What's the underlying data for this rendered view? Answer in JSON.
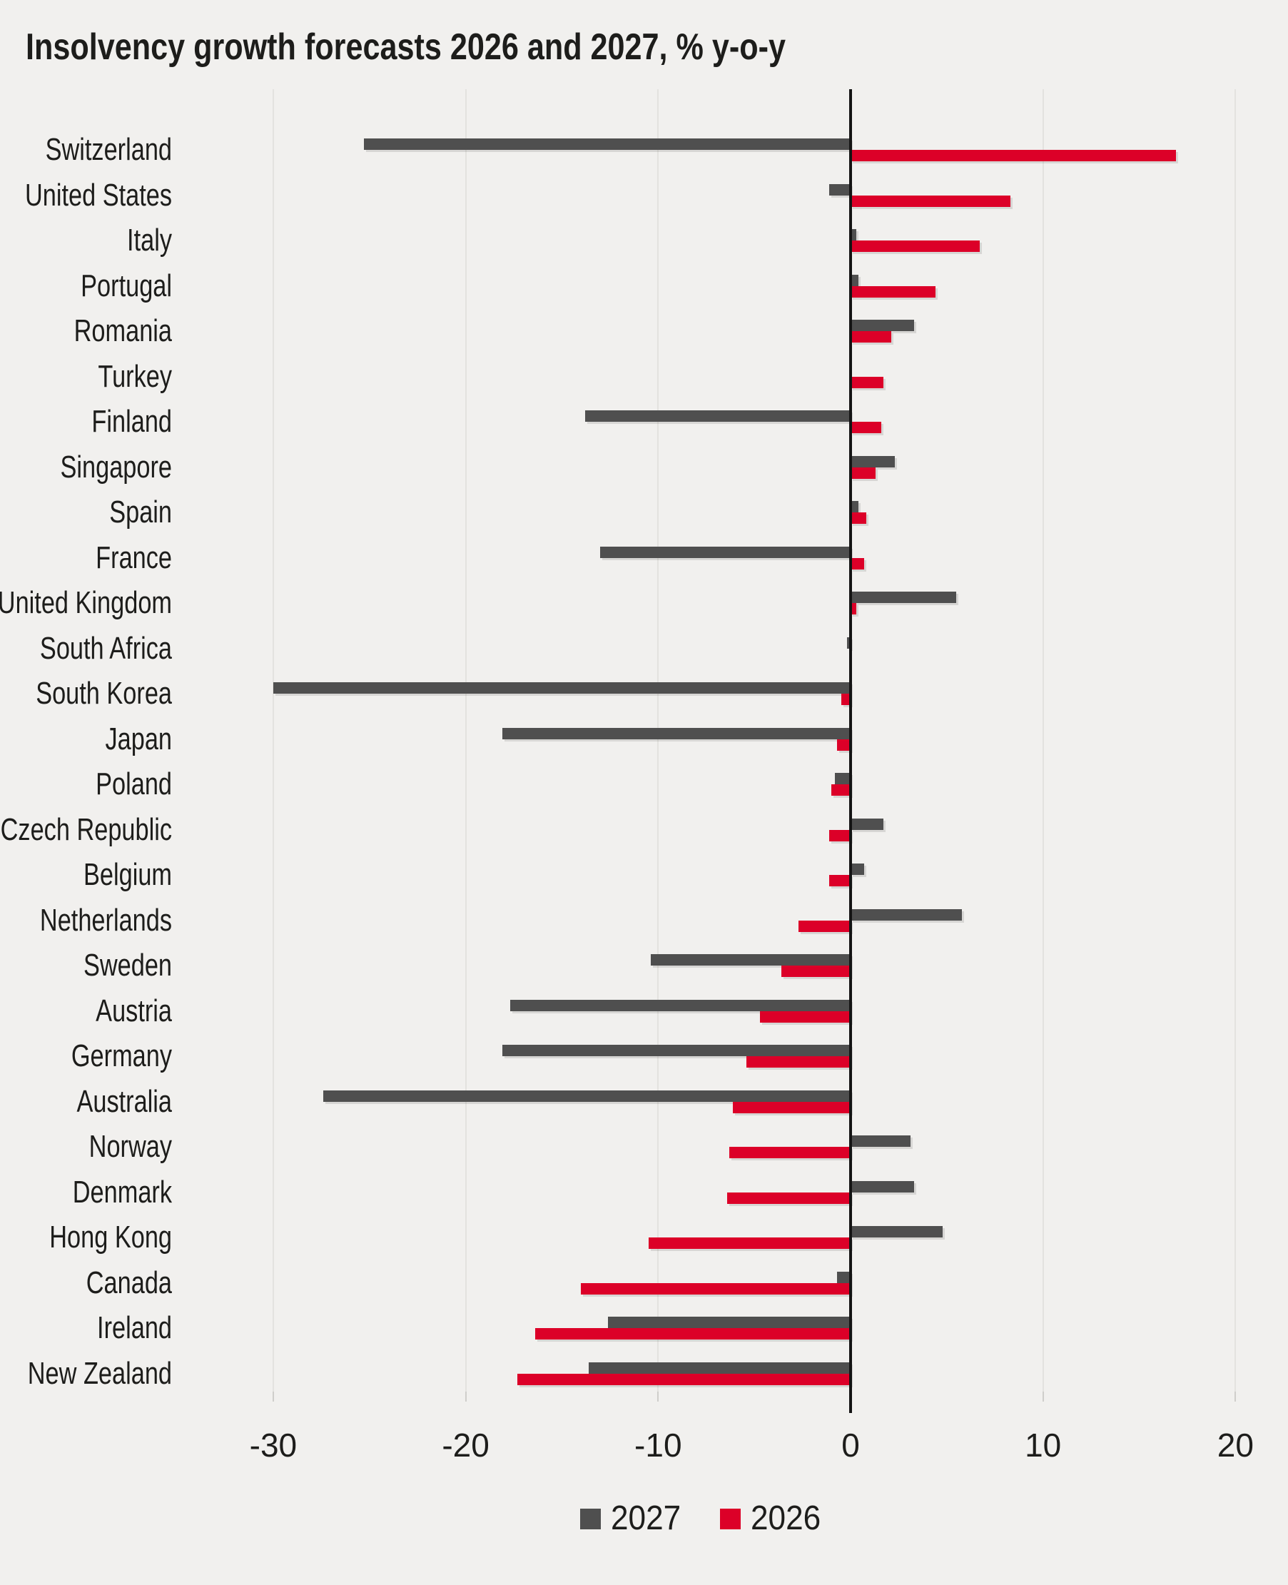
{
  "title": "Insolvency growth forecasts 2026 and 2027, % y-o-y",
  "colors": {
    "background": "#f1f0ee",
    "bar_2027": "#4f4f4f",
    "bar_2026": "#dc0028",
    "zero_axis": "#141414",
    "gridline": "#e3e2df",
    "text": "#1d1d1b"
  },
  "legend": [
    {
      "label": "2027",
      "color": "#4f4f4f"
    },
    {
      "label": "2026",
      "color": "#dc0028"
    }
  ],
  "chart_data": {
    "type": "bar",
    "orientation": "horizontal",
    "title": "Insolvency growth forecasts 2026 and 2027, % y-o-y",
    "xlabel": "% y-o-y",
    "ylabel": "",
    "xticks": [
      -30,
      -20,
      -10,
      0,
      10,
      20
    ],
    "xlim": [
      -34.5,
      22.5
    ],
    "grid": "vertical-light",
    "legend_position": "bottom-center",
    "categories": [
      "Switzerland",
      "United States",
      "Italy",
      "Portugal",
      "Romania",
      "Turkey",
      "Finland",
      "Singapore",
      "Spain",
      "France",
      "United Kingdom",
      "South Africa",
      "South Korea",
      "Japan",
      "Poland",
      "Czech Republic",
      "Belgium",
      "Netherlands",
      "Sweden",
      "Austria",
      "Germany",
      "Australia",
      "Norway",
      "Denmark",
      "Hong Kong",
      "Canada",
      "Ireland",
      "New Zealand"
    ],
    "series": [
      {
        "name": "2027",
        "color": "#4f4f4f",
        "values": [
          -25.3,
          -1.1,
          0.3,
          0.4,
          3.3,
          0.0,
          -13.8,
          2.3,
          0.4,
          -13.0,
          5.5,
          -0.2,
          -30.0,
          -18.1,
          -0.8,
          1.7,
          0.7,
          5.8,
          -10.4,
          -17.7,
          -18.1,
          -27.4,
          3.1,
          3.3,
          4.8,
          -0.7,
          -12.6,
          -13.6
        ]
      },
      {
        "name": "2026",
        "color": "#dc0028",
        "values": [
          16.9,
          8.3,
          6.7,
          4.4,
          2.1,
          1.7,
          1.6,
          1.3,
          0.8,
          0.7,
          0.3,
          0.0,
          -0.5,
          -0.7,
          -1.0,
          -1.1,
          -1.1,
          -2.7,
          -3.6,
          -4.7,
          -5.4,
          -6.1,
          -6.3,
          -6.4,
          -10.5,
          -14.0,
          -16.4,
          -17.3
        ]
      }
    ]
  }
}
